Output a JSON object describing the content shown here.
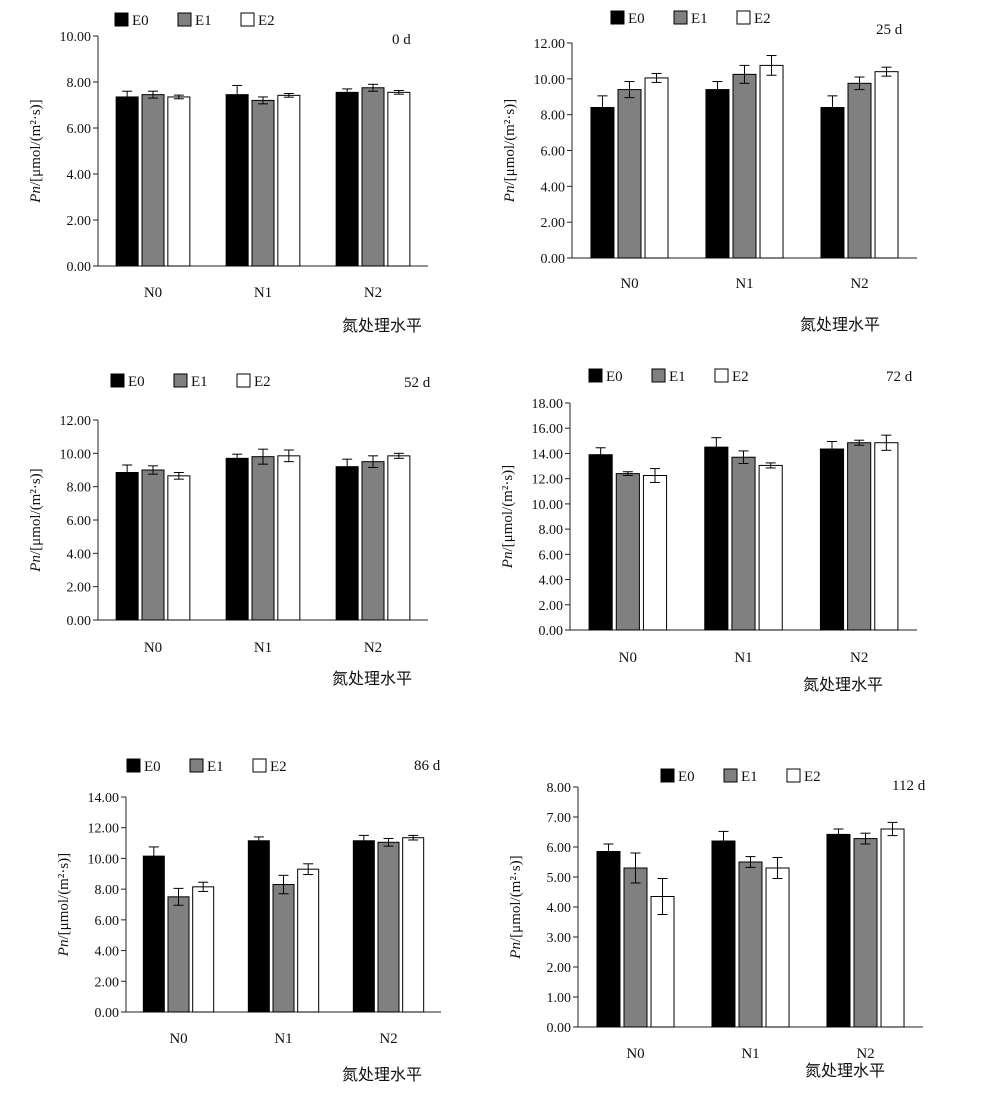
{
  "colors": {
    "E0": "#000000",
    "E1": "#808080",
    "E2": "#ffffff"
  },
  "legend": [
    "E0",
    "E1",
    "E2"
  ],
  "chart_data": [
    {
      "type": "bar",
      "day": "0 d",
      "categories": [
        "N0",
        "N1",
        "N2"
      ],
      "ylabel_italic": "Pn",
      "ylabel_unit": "/[μmol/(m²·s)]",
      "xlabel": "氮处理水平",
      "ylim": [
        0,
        10
      ],
      "yticks": [
        "0.00",
        "2.00",
        "4.00",
        "6.00",
        "8.00",
        "10.00"
      ],
      "series": [
        {
          "name": "E0",
          "values": [
            7.35,
            7.45,
            7.55
          ],
          "errors": [
            0.25,
            0.4,
            0.15
          ]
        },
        {
          "name": "E1",
          "values": [
            7.45,
            7.2,
            7.75
          ],
          "errors": [
            0.15,
            0.15,
            0.15
          ]
        },
        {
          "name": "E2",
          "values": [
            7.35,
            7.42,
            7.55
          ],
          "errors": [
            0.08,
            0.08,
            0.08
          ]
        }
      ]
    },
    {
      "type": "bar",
      "day": "25 d",
      "categories": [
        "N0",
        "N1",
        "N2"
      ],
      "ylabel_italic": "Pn",
      "ylabel_unit": "/[μmol/(m²·s)]",
      "xlabel": "氮处理水平",
      "ylim": [
        0,
        12
      ],
      "yticks": [
        "0.00",
        "2.00",
        "4.00",
        "6.00",
        "8.00",
        "10.00",
        "12.00"
      ],
      "series": [
        {
          "name": "E0",
          "values": [
            8.4,
            9.4,
            8.4
          ],
          "errors": [
            0.65,
            0.45,
            0.65
          ]
        },
        {
          "name": "E1",
          "values": [
            9.4,
            10.25,
            9.75
          ],
          "errors": [
            0.45,
            0.5,
            0.35
          ]
        },
        {
          "name": "E2",
          "values": [
            10.05,
            10.75,
            10.4
          ],
          "errors": [
            0.25,
            0.55,
            0.25
          ]
        }
      ]
    },
    {
      "type": "bar",
      "day": "52 d",
      "categories": [
        "N0",
        "N1",
        "N2"
      ],
      "ylabel_italic": "Pn",
      "ylabel_unit": "/[μmol/(m²·s)]",
      "xlabel": "氮处理水平",
      "ylim": [
        0,
        12
      ],
      "yticks": [
        "0.00",
        "2.00",
        "4.00",
        "6.00",
        "8.00",
        "10.00",
        "12.00"
      ],
      "series": [
        {
          "name": "E0",
          "values": [
            8.85,
            9.7,
            9.2
          ],
          "errors": [
            0.45,
            0.25,
            0.45
          ]
        },
        {
          "name": "E1",
          "values": [
            9.0,
            9.8,
            9.5
          ],
          "errors": [
            0.25,
            0.45,
            0.35
          ]
        },
        {
          "name": "E2",
          "values": [
            8.65,
            9.85,
            9.85
          ],
          "errors": [
            0.2,
            0.35,
            0.15
          ]
        }
      ]
    },
    {
      "type": "bar",
      "day": "72 d",
      "categories": [
        "N0",
        "N1",
        "N2"
      ],
      "ylabel_italic": "Pn",
      "ylabel_unit": "/[μmol/(m²·s)]",
      "xlabel": "氮处理水平",
      "ylim": [
        0,
        18
      ],
      "yticks": [
        "0.00",
        "2.00",
        "4.00",
        "6.00",
        "8.00",
        "10.00",
        "12.00",
        "14.00",
        "16.00",
        "18.00"
      ],
      "series": [
        {
          "name": "E0",
          "values": [
            13.9,
            14.5,
            14.35
          ],
          "errors": [
            0.55,
            0.75,
            0.6
          ]
        },
        {
          "name": "E1",
          "values": [
            12.4,
            13.7,
            14.85
          ],
          "errors": [
            0.15,
            0.5,
            0.2
          ]
        },
        {
          "name": "E2",
          "values": [
            12.25,
            13.05,
            14.85
          ],
          "errors": [
            0.55,
            0.2,
            0.6
          ]
        }
      ]
    },
    {
      "type": "bar",
      "day": "86 d",
      "categories": [
        "N0",
        "N1",
        "N2"
      ],
      "ylabel_italic": "Pn",
      "ylabel_unit": "/[μmol/(m²·s)]",
      "xlabel": "氮处理水平",
      "ylim": [
        0,
        14
      ],
      "yticks": [
        "0.00",
        "2.00",
        "4.00",
        "6.00",
        "8.00",
        "10.00",
        "12.00",
        "14.00"
      ],
      "series": [
        {
          "name": "E0",
          "values": [
            10.15,
            11.15,
            11.15
          ],
          "errors": [
            0.6,
            0.25,
            0.35
          ]
        },
        {
          "name": "E1",
          "values": [
            7.5,
            8.3,
            11.05
          ],
          "errors": [
            0.55,
            0.6,
            0.25
          ]
        },
        {
          "name": "E2",
          "values": [
            8.15,
            9.3,
            11.35
          ],
          "errors": [
            0.3,
            0.35,
            0.15
          ]
        }
      ]
    },
    {
      "type": "bar",
      "day": "112 d",
      "categories": [
        "N0",
        "N1",
        "N2"
      ],
      "ylabel_italic": "Pn",
      "ylabel_unit": "/[μmol/(m²·s)]",
      "xlabel": "氮处理水平",
      "ylim": [
        0,
        8
      ],
      "yticks": [
        "0.00",
        "1.00",
        "2.00",
        "3.00",
        "4.00",
        "5.00",
        "6.00",
        "7.00",
        "8.00"
      ],
      "series": [
        {
          "name": "E0",
          "values": [
            5.85,
            6.2,
            6.42
          ],
          "errors": [
            0.25,
            0.32,
            0.18
          ]
        },
        {
          "name": "E1",
          "values": [
            5.3,
            5.5,
            6.28
          ],
          "errors": [
            0.5,
            0.18,
            0.18
          ]
        },
        {
          "name": "E2",
          "values": [
            4.35,
            5.3,
            6.6
          ],
          "errors": [
            0.6,
            0.35,
            0.22
          ]
        }
      ]
    }
  ]
}
